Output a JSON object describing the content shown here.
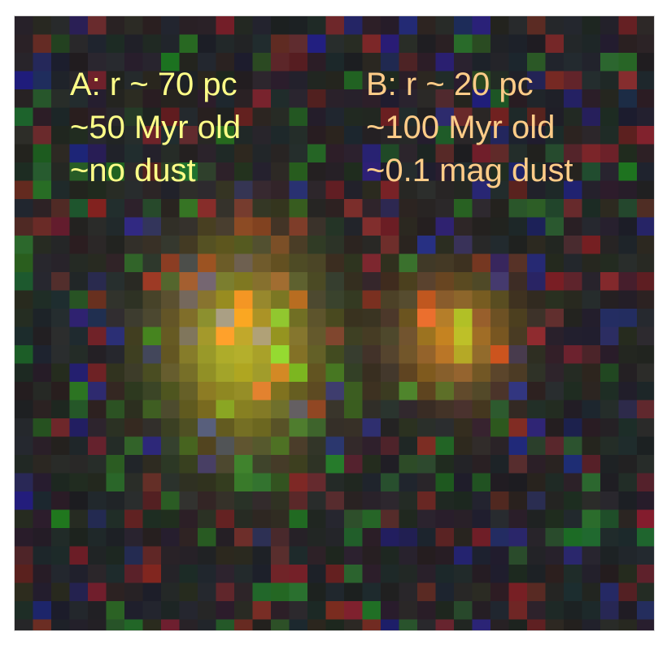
{
  "colors": {
    "background": "#1c1c1e",
    "label_a": "#ffff88",
    "label_b": "#ffcc88",
    "source_a_core": "#a0a000",
    "source_b_core": "#c08000"
  },
  "annotations": {
    "source_a": {
      "radius": "A: r ~ 70 pc",
      "age": "~50 Myr old",
      "dust": "~no dust"
    },
    "source_b": {
      "radius": "B: r ~ 20 pc",
      "age": "~100 Myr old",
      "dust": "~0.1 mag dust"
    }
  }
}
